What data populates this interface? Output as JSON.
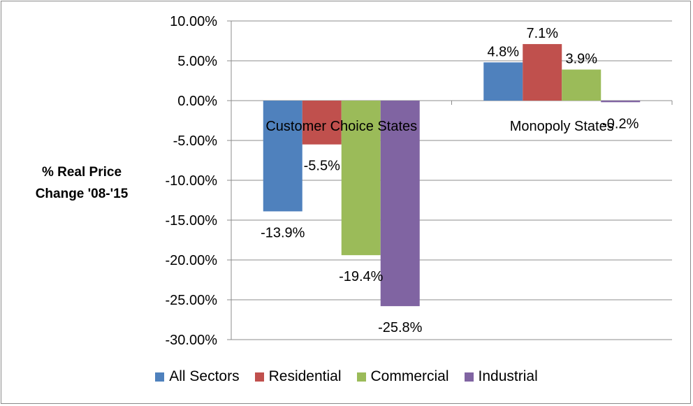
{
  "chart_data": {
    "type": "bar",
    "title": "",
    "xlabel": "",
    "ylabel": "% Real Price Change '08-'15",
    "ylabel_lines": [
      "% Real Price",
      "Change '08-'15"
    ],
    "categories": [
      "Customer Choice States",
      "Monopoly States"
    ],
    "series": [
      {
        "name": "All Sectors",
        "color": "#4f81bd",
        "values": [
          -13.9,
          4.8
        ],
        "labels": [
          "-13.9%",
          "4.8%"
        ]
      },
      {
        "name": "Residential",
        "color": "#c0504d",
        "values": [
          -5.5,
          7.1
        ],
        "labels": [
          "-5.5%",
          "7.1%"
        ]
      },
      {
        "name": "Commercial",
        "color": "#9bbb59",
        "values": [
          -19.4,
          3.9
        ],
        "labels": [
          "-19.4%",
          "3.9%"
        ]
      },
      {
        "name": "Industrial",
        "color": "#8064a2",
        "values": [
          -25.8,
          -0.2
        ],
        "labels": [
          "-25.8%",
          "-0.2%"
        ]
      }
    ],
    "yticks": [
      "10.00%",
      "5.00%",
      "0.00%",
      "-5.00%",
      "-10.00%",
      "-15.00%",
      "-20.00%",
      "-25.00%",
      "-30.00%"
    ],
    "ylim": [
      -30,
      10
    ],
    "grid": true,
    "legend_position": "bottom"
  }
}
